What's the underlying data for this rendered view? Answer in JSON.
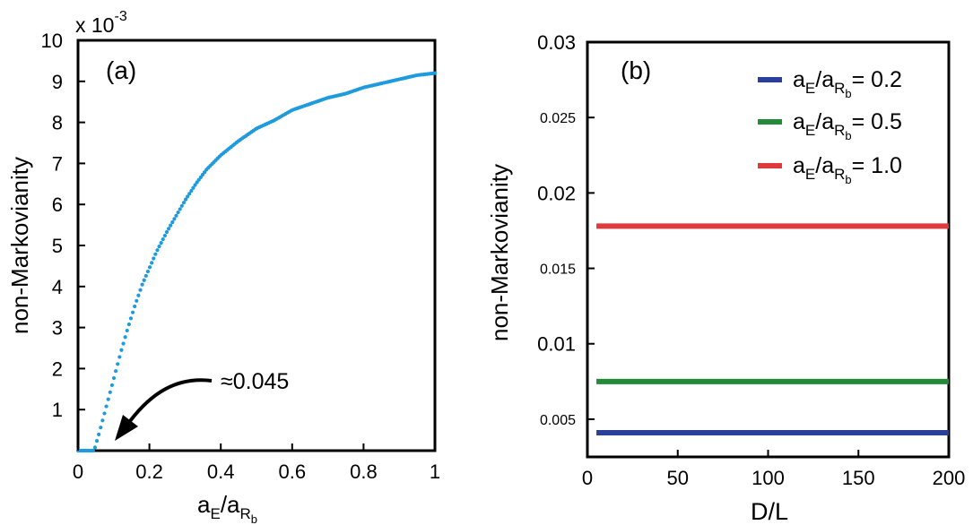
{
  "colors": {
    "panel_a_points": "#1e9ade",
    "blue": "#2a3f97",
    "green": "#238a38",
    "red": "#e0393a",
    "axis": "#000000"
  },
  "chart_data": [
    {
      "type": "scatter",
      "panel_label": "(a)",
      "multiplier_label": "x 10",
      "multiplier_exponent": "-3",
      "ylabel": "non-Markovianity",
      "xlabel": {
        "main": "a",
        "sub1": "E",
        "slash": "/a",
        "sub2": "R",
        "sub3": "b"
      },
      "xlim": [
        0,
        1
      ],
      "ylim": [
        0,
        10
      ],
      "xticks": [
        0,
        0.2,
        0.4,
        0.6,
        0.8,
        1
      ],
      "xtick_labels": [
        "0",
        "0.2",
        "0.4",
        "0.6",
        "0.8",
        "1"
      ],
      "yticks": [
        1,
        2,
        3,
        4,
        5,
        6,
        7,
        8,
        9,
        10
      ],
      "ytick_labels": [
        "1",
        "2",
        "3",
        "4",
        "5",
        "6",
        "7",
        "8",
        "9",
        "10"
      ],
      "annotation": {
        "text": "≈0.045",
        "target_x": 0.045,
        "target_y": 0
      },
      "curve": {
        "threshold": 0.045,
        "x_start": 0,
        "x_end": 1,
        "n_points": 190,
        "x": [
          0.045,
          0.06,
          0.08,
          0.1,
          0.12,
          0.14,
          0.16,
          0.18,
          0.2,
          0.22,
          0.25,
          0.28,
          0.3,
          0.33,
          0.36,
          0.4,
          0.45,
          0.5,
          0.55,
          0.6,
          0.65,
          0.7,
          0.75,
          0.8,
          0.85,
          0.9,
          0.95,
          1.0
        ],
        "y": [
          0,
          0.45,
          1.1,
          1.75,
          2.4,
          3.0,
          3.55,
          4.05,
          4.45,
          4.85,
          5.35,
          5.8,
          6.1,
          6.5,
          6.85,
          7.2,
          7.55,
          7.85,
          8.05,
          8.3,
          8.45,
          8.6,
          8.7,
          8.85,
          8.95,
          9.05,
          9.15,
          9.2
        ]
      }
    },
    {
      "type": "line",
      "panel_label": "(b)",
      "ylabel": "non-Markovianity",
      "xlabel": "D/L",
      "xlim": [
        0,
        200
      ],
      "ylim": [
        0.0025,
        0.03
      ],
      "xticks": [
        0,
        50,
        100,
        150,
        200
      ],
      "xtick_labels": [
        "0",
        "50",
        "100",
        "150",
        "200"
      ],
      "yticks": [
        0.005,
        0.01,
        0.015,
        0.02,
        0.025,
        0.03
      ],
      "ytick_labels": [
        "0.005",
        "0.01",
        "0.015",
        "0.02",
        "0.025",
        "0.03"
      ],
      "ytick_big": [
        false,
        true,
        false,
        true,
        false,
        true
      ],
      "series": [
        {
          "name": "a_E/a_Rb = 0.2",
          "value_label": "= 0.2",
          "color": "#2a3f97",
          "x": [
            5,
            200
          ],
          "values": [
            0.0041,
            0.0041
          ]
        },
        {
          "name": "a_E/a_Rb = 0.5",
          "value_label": "= 0.5",
          "color": "#238a38",
          "x": [
            5,
            200
          ],
          "values": [
            0.0075,
            0.0075
          ]
        },
        {
          "name": "a_E/a_Rb = 1.0",
          "value_label": "= 1.0",
          "color": "#e0393a",
          "x": [
            5,
            200
          ],
          "values": [
            0.0178,
            0.0178
          ]
        }
      ],
      "legend_placement": "top-right"
    }
  ]
}
